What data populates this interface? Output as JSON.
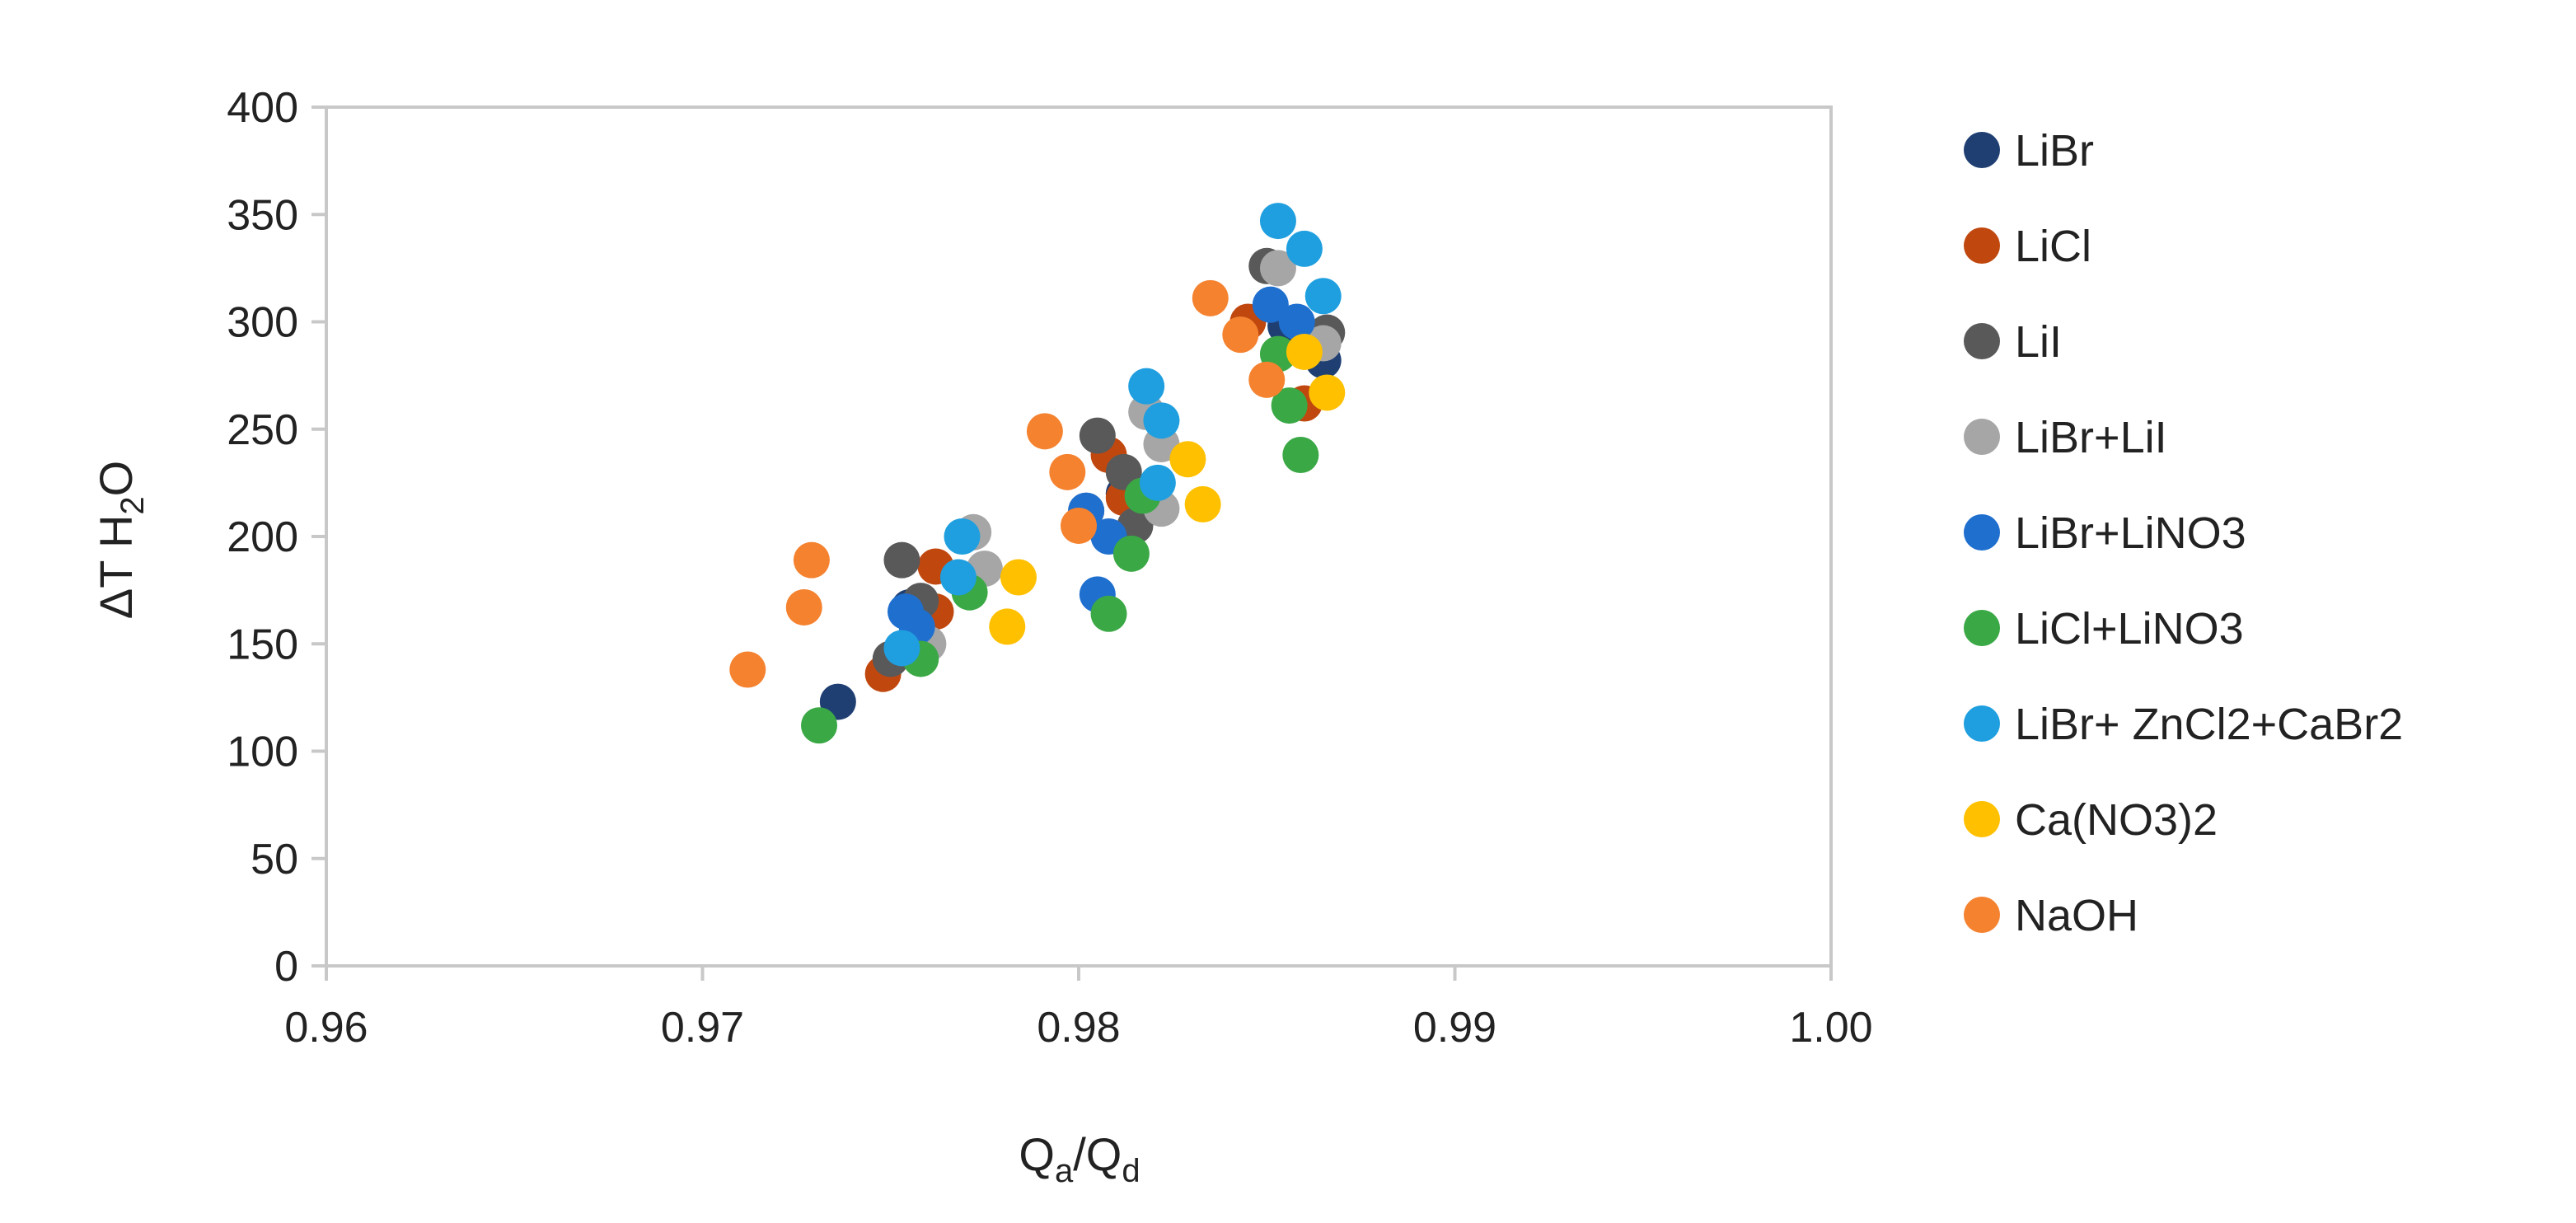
{
  "chart_data": {
    "type": "scatter",
    "xlabel": {
      "main": "Q",
      "sub_a": "a",
      "slash": "/Q",
      "sub_b": "d"
    },
    "ylabel": {
      "main": "ΔT H",
      "sub": "2",
      "tail": "O"
    },
    "xlim": [
      0.96,
      1.0
    ],
    "ylim": [
      0,
      400
    ],
    "x_ticks": [
      "0.96",
      "0.97",
      "0.98",
      "0.99",
      "1.00"
    ],
    "x_tick_values": [
      0.96,
      0.97,
      0.98,
      0.99,
      1.0
    ],
    "y_ticks": [
      "0",
      "50",
      "100",
      "150",
      "200",
      "250",
      "300",
      "350",
      "400"
    ],
    "y_tick_values": [
      0,
      50,
      100,
      150,
      200,
      250,
      300,
      350,
      400
    ],
    "grid": false,
    "legend_position": "right",
    "series": [
      {
        "name": "LiBr",
        "color": "#1f3f73",
        "points": [
          [
            0.9736,
            123
          ],
          [
            0.9755,
            167
          ],
          [
            0.9802,
            212
          ],
          [
            0.9812,
            220
          ],
          [
            0.9855,
            298
          ],
          [
            0.9865,
            282
          ]
        ]
      },
      {
        "name": "LiCl",
        "color": "#c0480f",
        "points": [
          [
            0.9748,
            136
          ],
          [
            0.9762,
            165
          ],
          [
            0.9762,
            186
          ],
          [
            0.9808,
            238
          ],
          [
            0.9812,
            218
          ],
          [
            0.9845,
            300
          ],
          [
            0.986,
            262
          ]
        ]
      },
      {
        "name": "LiI",
        "color": "#595959",
        "points": [
          [
            0.975,
            143
          ],
          [
            0.9753,
            189
          ],
          [
            0.9758,
            170
          ],
          [
            0.9805,
            247
          ],
          [
            0.9812,
            230
          ],
          [
            0.9815,
            205
          ],
          [
            0.985,
            326
          ],
          [
            0.9866,
            295
          ]
        ]
      },
      {
        "name": "LiBr+LiI",
        "color": "#a6a6a6",
        "points": [
          [
            0.976,
            150
          ],
          [
            0.9772,
            202
          ],
          [
            0.9775,
            185
          ],
          [
            0.9818,
            258
          ],
          [
            0.9822,
            243
          ],
          [
            0.9822,
            213
          ],
          [
            0.9853,
            325
          ],
          [
            0.9865,
            290
          ]
        ]
      },
      {
        "name": "LiBr+LiNO3",
        "color": "#1f6fcf",
        "points": [
          [
            0.9754,
            165
          ],
          [
            0.9757,
            158
          ],
          [
            0.9802,
            212
          ],
          [
            0.9805,
            173
          ],
          [
            0.9808,
            200
          ],
          [
            0.9851,
            308
          ],
          [
            0.9858,
            300
          ]
        ]
      },
      {
        "name": "LiCl+LiNO3",
        "color": "#3aa845",
        "points": [
          [
            0.9731,
            112
          ],
          [
            0.9758,
            143
          ],
          [
            0.9771,
            174
          ],
          [
            0.9808,
            164
          ],
          [
            0.9814,
            192
          ],
          [
            0.9817,
            219
          ],
          [
            0.9853,
            285
          ],
          [
            0.9856,
            261
          ],
          [
            0.9859,
            238
          ]
        ]
      },
      {
        "name": "LiBr+ ZnCl2+CaBr2",
        "color": "#1f9fdf",
        "points": [
          [
            0.9753,
            148
          ],
          [
            0.9768,
            181
          ],
          [
            0.9769,
            200
          ],
          [
            0.9818,
            270
          ],
          [
            0.9821,
            225
          ],
          [
            0.9822,
            254
          ],
          [
            0.9853,
            347
          ],
          [
            0.986,
            334
          ],
          [
            0.9865,
            312
          ]
        ]
      },
      {
        "name": "Ca(NO3)2",
        "color": "#ffc000",
        "points": [
          [
            0.9781,
            158
          ],
          [
            0.9784,
            181
          ],
          [
            0.9829,
            236
          ],
          [
            0.9833,
            215
          ],
          [
            0.986,
            286
          ],
          [
            0.9866,
            267
          ]
        ]
      },
      {
        "name": "NaOH",
        "color": "#f5822f",
        "points": [
          [
            0.9712,
            138
          ],
          [
            0.9727,
            167
          ],
          [
            0.9729,
            189
          ],
          [
            0.9791,
            249
          ],
          [
            0.9797,
            230
          ],
          [
            0.98,
            205
          ],
          [
            0.9835,
            311
          ],
          [
            0.9843,
            294
          ],
          [
            0.985,
            273
          ]
        ]
      }
    ]
  }
}
